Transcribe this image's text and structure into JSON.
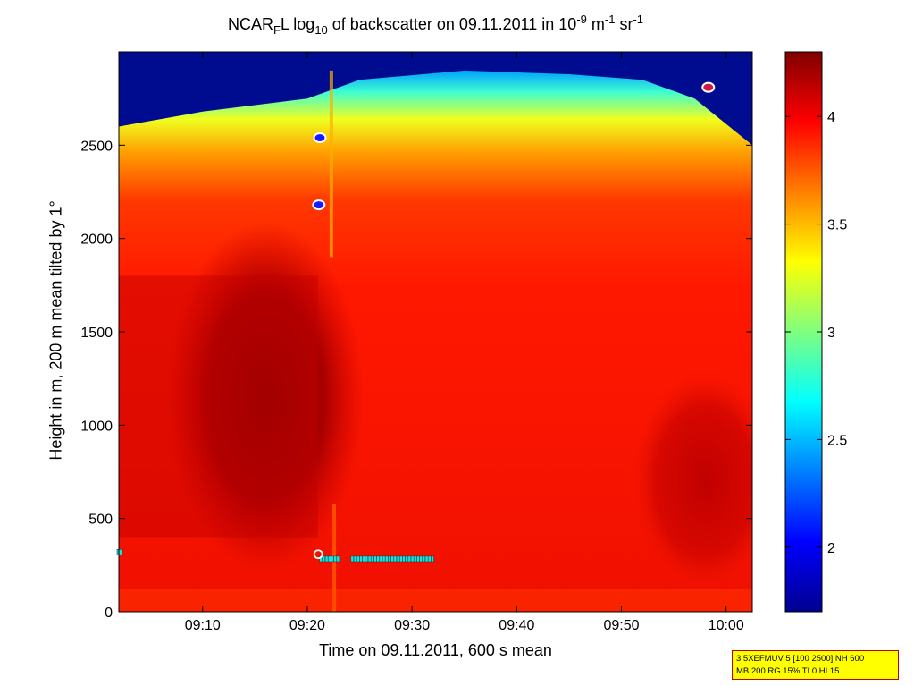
{
  "chart_data": {
    "type": "heatmap",
    "title_parts": [
      "NCAR",
      "F",
      "L log",
      "10",
      " of backscatter on 09.11.2011 in 10",
      "-9",
      " m",
      "-1",
      " sr",
      "-1"
    ],
    "xlabel": "Time on 09.11.2011, 600 s mean",
    "ylabel": "Height in m, 200 m mean tilted by 1°",
    "x_ticks": [
      "09:10",
      "09:20",
      "09:30",
      "09:40",
      "09:50",
      "10:00"
    ],
    "x_tick_minutes": [
      10,
      20,
      30,
      40,
      50,
      60
    ],
    "x_range_minutes": [
      2,
      62.5
    ],
    "x_unit": "minutes after 09:00",
    "y_ticks": [
      0,
      500,
      1000,
      1500,
      2000,
      2500
    ],
    "y_range": [
      0,
      3000
    ],
    "colorbar": {
      "range": [
        1.7,
        4.3
      ],
      "ticks": [
        2,
        2.5,
        3,
        3.5,
        4
      ],
      "tick_labels": [
        "2",
        "2.5",
        "3",
        "3.5",
        "4"
      ],
      "colormap": "jet"
    },
    "approx_field": {
      "description_values": "log10 backscatter, approximate",
      "top_of_layer_height_m": [
        2600,
        2680,
        2750,
        2850,
        2900,
        2880,
        2850,
        2750,
        2500
      ],
      "top_of_layer_time_min": [
        2,
        10,
        20,
        25,
        35,
        45,
        52,
        57,
        62.5
      ],
      "core_value": 4.25,
      "clear_air_value": 1.7,
      "core_region": {
        "time_min": [
          10,
          22
        ],
        "height_m": [
          500,
          1800
        ]
      }
    },
    "markers": [
      {
        "type": "cloud-base",
        "time_min": 21.2,
        "height_m": 2540
      },
      {
        "type": "cloud-base",
        "time_min": 21.1,
        "height_m": 2180
      },
      {
        "type": "cloud-base",
        "time_min": 58.3,
        "height_m": 2810
      },
      {
        "type": "mixing-layer",
        "time_min": 2.0,
        "height_m": 320
      },
      {
        "type": "mixing-layer-series",
        "time_min_start": 21.3,
        "time_min_end": 32.0,
        "height_m": 283
      }
    ]
  },
  "info_box": {
    "line1": "3.5XEFMUV 5 [100 2500] NH 600",
    "line2": "MB 200 RG 15% TI 0 HI 15"
  },
  "colors": {
    "background": "#ffffff",
    "info_box_fill": "#ffff00",
    "info_box_border": "#c00000",
    "marker_cyan": "#22dddd",
    "marker_blue": "#1a1aff",
    "marker_red": "#cc1a44"
  }
}
